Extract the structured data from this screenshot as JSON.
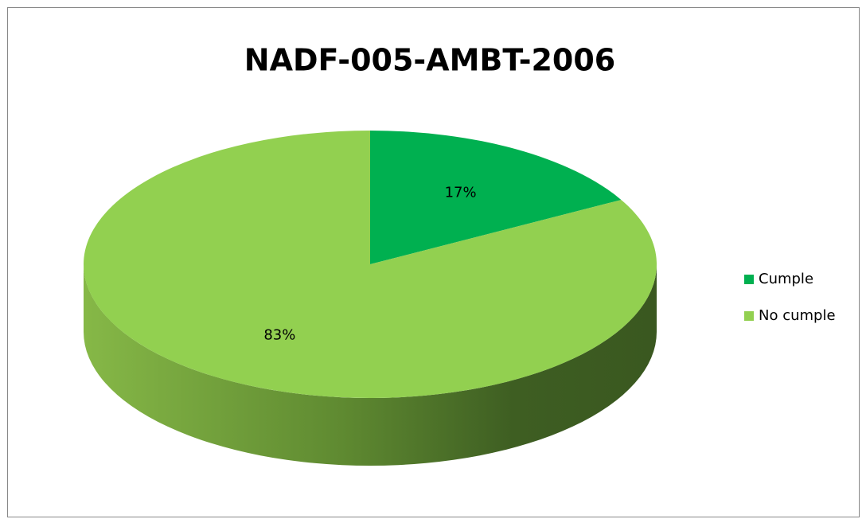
{
  "chart_data": {
    "type": "pie",
    "title": "NADF-005-AMBT-2006",
    "categories": [
      "Cumple",
      "No cumple"
    ],
    "values": [
      17,
      83
    ],
    "value_labels": [
      "17%",
      "83%"
    ],
    "colors": [
      "#00b050",
      "#92d050"
    ],
    "legend": "right"
  }
}
